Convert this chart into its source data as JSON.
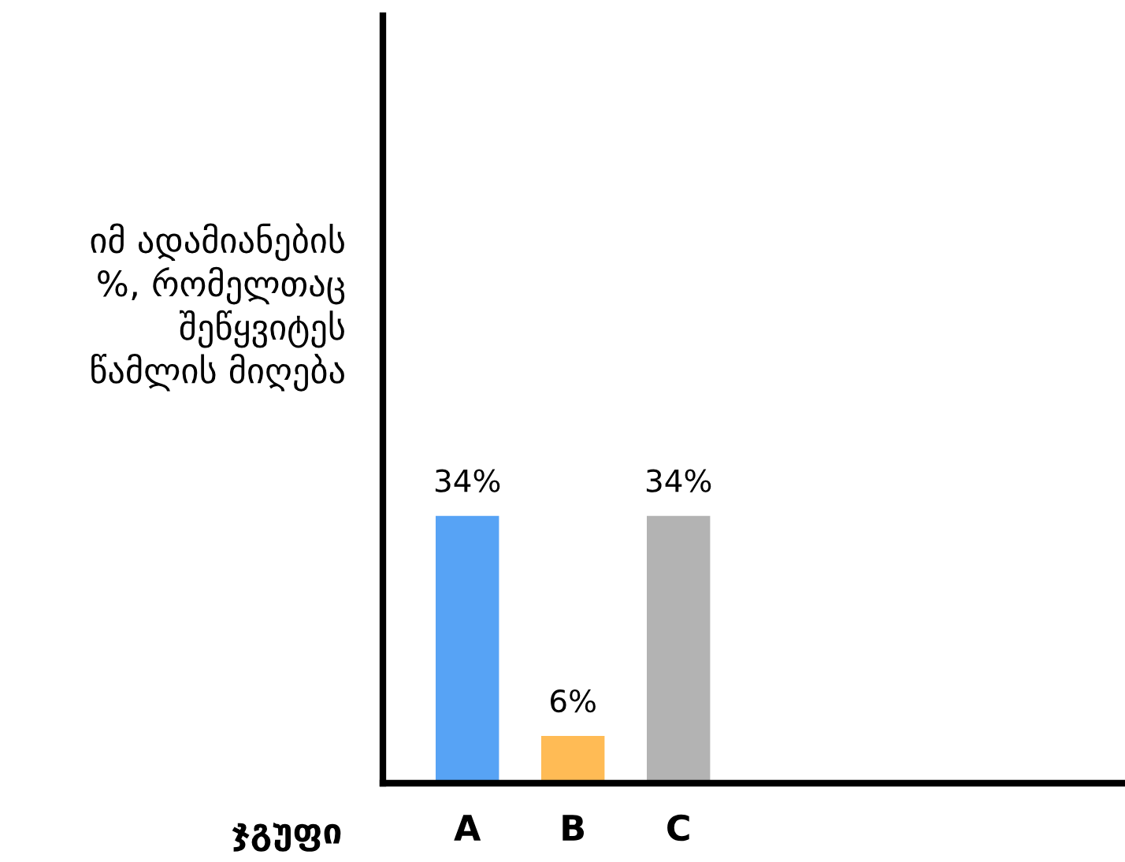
{
  "chart_data": {
    "type": "bar",
    "ylabel": "იმ ადამიანების\n%, რომელთაც\nშეწყვიტეს\nწამლის მიღება",
    "xlabel": "ჯგუფი",
    "categories": [
      "A",
      "B",
      "C"
    ],
    "values": [
      34,
      6,
      34
    ],
    "colors": [
      "#57a3f5",
      "#ffbb55",
      "#b3b3b3"
    ],
    "value_labels": [
      "34%",
      "6%",
      "34%"
    ],
    "tick_labels": "x",
    "grid": false,
    "legend": false
  }
}
